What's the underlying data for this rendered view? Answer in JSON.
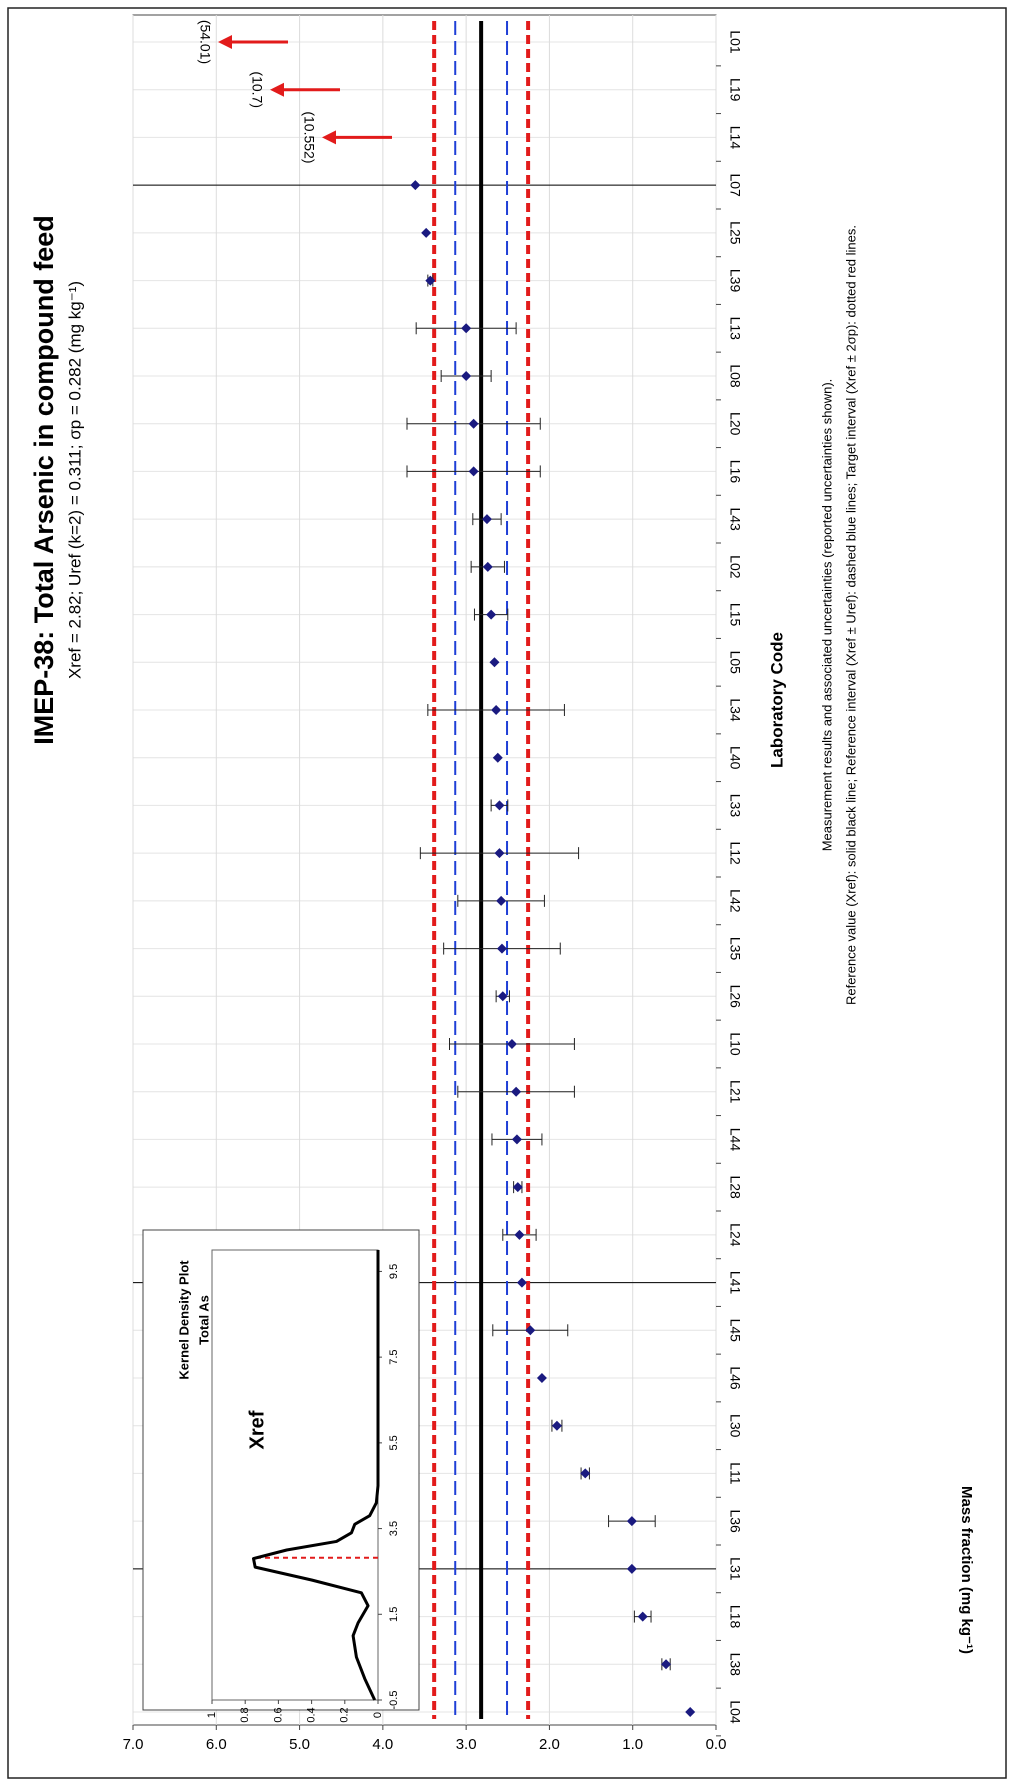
{
  "chart_data": {
    "type": "dot_errorbar",
    "title": "IMEP-38: Total Arsenic in compound feed",
    "subtitle": "Xref = 2.82; Uref (k=2) = 0.311; σp = 0.282 (mg kg⁻¹)",
    "x_label": "Laboratory Code",
    "y_label": "Mass fraction (mg kg⁻¹)",
    "categories": [
      "L04",
      "L38",
      "L18",
      "L31",
      "L36",
      "L11",
      "L30",
      "L46",
      "L45",
      "L41",
      "L24",
      "L28",
      "L44",
      "L21",
      "L10",
      "L26",
      "L35",
      "L42",
      "L12",
      "L33",
      "L40",
      "L34",
      "L05",
      "L15",
      "L02",
      "L43",
      "L16",
      "L20",
      "L08",
      "L13",
      "L39",
      "L25",
      "L07",
      "L14",
      "L19",
      "L01"
    ],
    "values": [
      0.31,
      0.6,
      0.88,
      1.01,
      1.01,
      1.57,
      1.91,
      2.09,
      2.23,
      2.33,
      2.36,
      2.38,
      2.39,
      2.4,
      2.45,
      2.56,
      2.57,
      2.58,
      2.6,
      2.6,
      2.62,
      2.64,
      2.66,
      2.7,
      2.74,
      2.75,
      2.91,
      2.91,
      3.0,
      3.0,
      3.43,
      3.48,
      3.61,
      10.552,
      10.7,
      54.01
    ],
    "errors": [
      null,
      0.05,
      0.1,
      null,
      0.28,
      0.05,
      0.06,
      null,
      0.45,
      null,
      0.2,
      0.05,
      0.3,
      0.7,
      0.75,
      0.08,
      0.7,
      0.52,
      0.95,
      0.1,
      null,
      0.82,
      null,
      0.2,
      0.2,
      0.17,
      0.8,
      0.8,
      0.3,
      0.6,
      0.03,
      null,
      null,
      null,
      null,
      null
    ],
    "value_labels": [
      null,
      null,
      null,
      null,
      null,
      null,
      null,
      null,
      null,
      null,
      null,
      null,
      null,
      null,
      null,
      null,
      null,
      null,
      null,
      null,
      null,
      null,
      null,
      null,
      null,
      null,
      null,
      null,
      null,
      null,
      null,
      null,
      null,
      "(10.552)",
      "(10.7)",
      "(54.01)"
    ],
    "color": "#1a1a80",
    "ylim": [
      0,
      7
    ],
    "yticks": [
      {
        "value": 0,
        "label": "0.0"
      },
      {
        "value": 1,
        "label": "1.0"
      },
      {
        "value": 2,
        "label": "2.0"
      },
      {
        "value": 3,
        "label": "3.0"
      },
      {
        "value": 4,
        "label": "4.0"
      },
      {
        "value": 5,
        "label": "5.0"
      },
      {
        "value": 6,
        "label": "6.0"
      },
      {
        "value": 7,
        "label": "7.0"
      }
    ],
    "grid": true,
    "reference_lines": [
      {
        "value": 2.82,
        "color": "#000000",
        "style": "solid"
      },
      {
        "value": 2.509,
        "color": "#1f3fd6",
        "style": "dashed"
      },
      {
        "value": 3.131,
        "color": "#1f3fd6",
        "style": "dashed"
      },
      {
        "value": 2.256,
        "color": "#e21b1b",
        "style": "dotted"
      },
      {
        "value": 3.384,
        "color": "#e21b1b",
        "style": "dotted"
      }
    ],
    "separator_indices": [
      3,
      9,
      32
    ],
    "notes": [
      "Measurement results and associated uncertainties (reported uncertainties shown).",
      "Reference value (Xref): solid black line; Reference interval (Xref ± Uref): dashed blue lines; Target interval (Xref ± 2σp): dotted red lines."
    ],
    "inset": {
      "type": "line",
      "title": [
        "Kernel Density Plot",
        "Total As"
      ],
      "annotation": "Xref",
      "marker_x": 2.82,
      "x": [
        -0.5,
        0,
        0.5,
        1,
        1.3,
        1.7,
        2,
        2.3,
        2.6,
        2.8,
        3.0,
        3.2,
        3.4,
        3.6,
        3.8,
        4.1,
        4.5,
        10
      ],
      "values": [
        0.02,
        0.08,
        0.13,
        0.15,
        0.12,
        0.06,
        0.1,
        0.4,
        0.74,
        0.75,
        0.55,
        0.25,
        0.16,
        0.14,
        0.05,
        0.01,
        0,
        0
      ],
      "xlim": [
        -0.5,
        10
      ],
      "ylim": [
        0,
        1
      ],
      "xticks": [
        -0.5,
        1.5,
        3.5,
        5.5,
        7.5,
        9.5
      ],
      "yticks": [
        0,
        0.2,
        0.4,
        0.6,
        0.8,
        1
      ]
    }
  }
}
